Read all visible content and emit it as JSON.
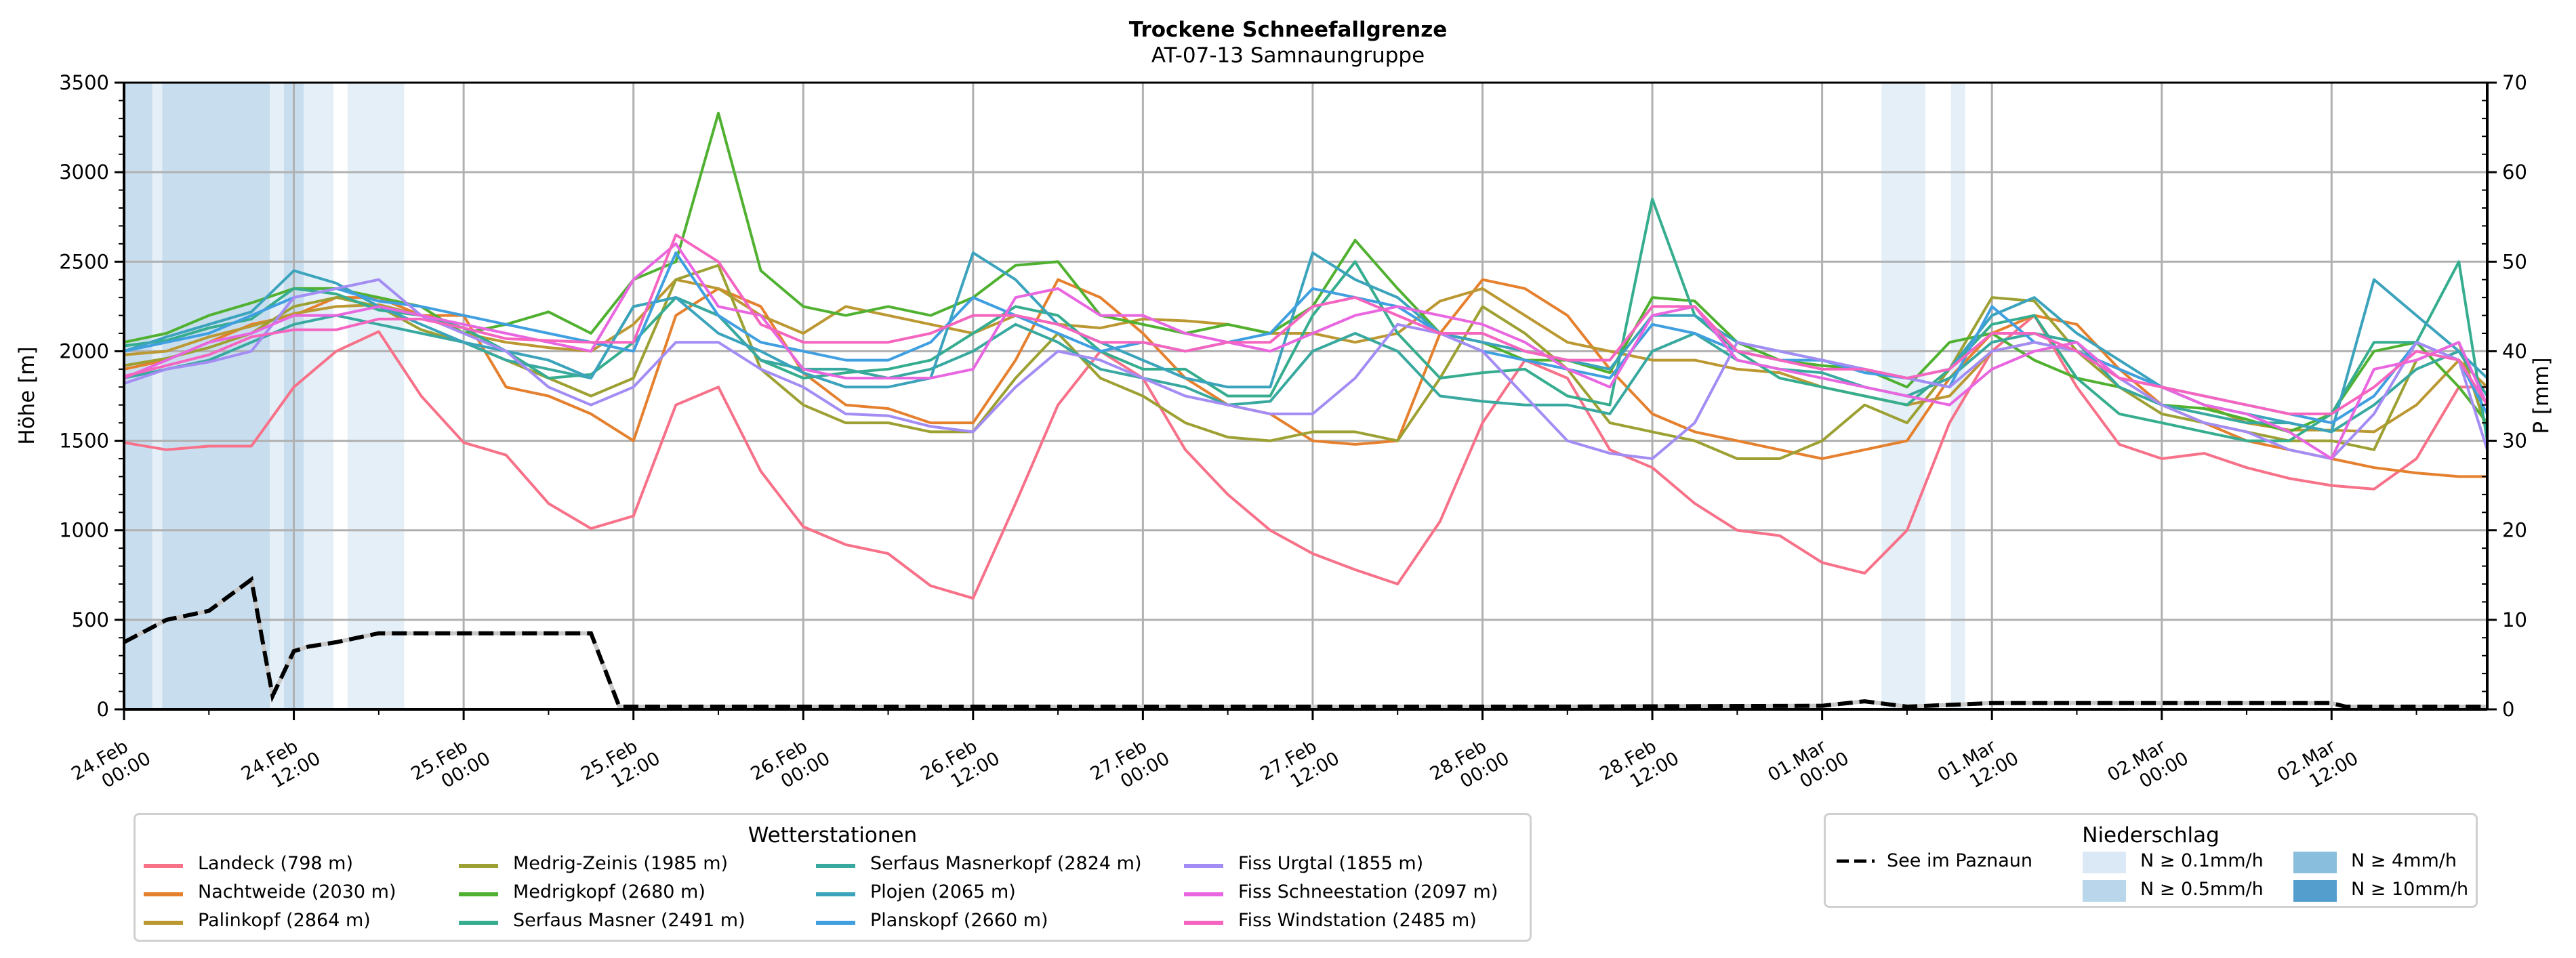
{
  "chart_data": {
    "type": "line",
    "title": "Trockene Schneefallgrenze",
    "subtitle": "AT-07-13 Samnaungruppe",
    "ylabel": "Höhe [m]",
    "y2label": "P [mm]",
    "ylim": [
      0,
      3500
    ],
    "y2lim": [
      0,
      70
    ],
    "yticks": [
      "0",
      "500",
      "1000",
      "1500",
      "2000",
      "2500",
      "3000",
      "3500"
    ],
    "y2ticks": [
      "0",
      "10",
      "20",
      "30",
      "40",
      "50",
      "60",
      "70"
    ],
    "x_unit": "hours since 24.Feb 00:00",
    "xlim": [
      0,
      167
    ],
    "xticks": [
      {
        "h": 0,
        "line1": "24.Feb",
        "line2": "00:00"
      },
      {
        "h": 12,
        "line1": "24.Feb",
        "line2": "12:00"
      },
      {
        "h": 24,
        "line1": "25.Feb",
        "line2": "00:00"
      },
      {
        "h": 36,
        "line1": "25.Feb",
        "line2": "12:00"
      },
      {
        "h": 48,
        "line1": "26.Feb",
        "line2": "00:00"
      },
      {
        "h": 60,
        "line1": "26.Feb",
        "line2": "12:00"
      },
      {
        "h": 72,
        "line1": "27.Feb",
        "line2": "00:00"
      },
      {
        "h": 84,
        "line1": "27.Feb",
        "line2": "12:00"
      },
      {
        "h": 96,
        "line1": "28.Feb",
        "line2": "00:00"
      },
      {
        "h": 108,
        "line1": "28.Feb",
        "line2": "12:00"
      },
      {
        "h": 120,
        "line1": "01.Mar",
        "line2": "00:00"
      },
      {
        "h": 132,
        "line1": "01.Mar",
        "line2": "12:00"
      },
      {
        "h": 144,
        "line1": "02.Mar",
        "line2": "00:00"
      },
      {
        "h": 156,
        "line1": "02.Mar",
        "line2": "12:00"
      }
    ],
    "grid": true,
    "x": [
      0,
      3,
      6,
      9,
      12,
      15,
      18,
      21,
      24,
      27,
      30,
      33,
      36,
      39,
      42,
      45,
      48,
      51,
      54,
      57,
      60,
      63,
      66,
      69,
      72,
      75,
      78,
      81,
      84,
      87,
      90,
      93,
      96,
      99,
      102,
      105,
      108,
      111,
      114,
      117,
      120,
      123,
      126,
      129,
      132,
      135,
      138,
      141,
      144,
      147,
      150,
      153,
      156,
      159,
      162,
      165,
      167
    ],
    "series": [
      {
        "name": "Landeck (798 m)",
        "color": "#f77189",
        "values": [
          1490,
          1450,
          1470,
          1470,
          1800,
          2000,
          2110,
          1750,
          1490,
          1420,
          1150,
          1010,
          1080,
          1700,
          1800,
          1330,
          1020,
          920,
          870,
          690,
          620,
          1150,
          1700,
          2000,
          1850,
          1450,
          1200,
          1000,
          870,
          780,
          700,
          1050,
          1600,
          1950,
          1850,
          1450,
          1350,
          1150,
          1000,
          970,
          820,
          760,
          1000,
          1600,
          2000,
          2200,
          1800,
          1480,
          1400,
          1430,
          1350,
          1290,
          1250,
          1230,
          1400,
          1800,
          1800
        ]
      },
      {
        "name": "Nachtweide (2030 m)",
        "color": "#e5802e",
        "values": [
          1900,
          1950,
          2050,
          2150,
          2200,
          2300,
          2300,
          2200,
          2200,
          1800,
          1750,
          1650,
          1500,
          2200,
          2350,
          2250,
          1880,
          1700,
          1680,
          1600,
          1600,
          1950,
          2400,
          2300,
          2100,
          1850,
          1700,
          1650,
          1500,
          1480,
          1500,
          2100,
          2400,
          2350,
          2200,
          1900,
          1650,
          1550,
          1500,
          1450,
          1400,
          1450,
          1500,
          1850,
          2100,
          2200,
          2150,
          1900,
          1700,
          1600,
          1500,
          1450,
          1400,
          1350,
          1320,
          1300,
          1300
        ]
      },
      {
        "name": "Palinkopf (2864 m)",
        "color": "#bb9832",
        "values": [
          1980,
          2000,
          2080,
          2140,
          2210,
          2250,
          2260,
          2200,
          2100,
          2050,
          2020,
          2000,
          2150,
          2400,
          2350,
          2200,
          2100,
          2250,
          2200,
          2150,
          2100,
          2200,
          2150,
          2130,
          2180,
          2170,
          2150,
          2100,
          2100,
          2050,
          2100,
          2280,
          2350,
          2200,
          2050,
          2000,
          1950,
          1950,
          1900,
          1880,
          1800,
          1750,
          1700,
          1750,
          2000,
          2050,
          2000,
          1900,
          1800,
          1700,
          1600,
          1560,
          1560,
          1550,
          1700,
          1950,
          1800
        ]
      },
      {
        "name": "Medrig-Zeinis (1985 m)",
        "color": "#9da032",
        "values": [
          1920,
          1960,
          2020,
          2100,
          2250,
          2300,
          2250,
          2120,
          2050,
          1950,
          1850,
          1750,
          1850,
          2400,
          2480,
          1900,
          1700,
          1600,
          1600,
          1550,
          1550,
          1850,
          2100,
          1850,
          1750,
          1600,
          1520,
          1500,
          1550,
          1550,
          1500,
          1850,
          2250,
          2100,
          1900,
          1600,
          1550,
          1500,
          1400,
          1400,
          1500,
          1700,
          1600,
          1900,
          2300,
          2280,
          2000,
          1800,
          1650,
          1600,
          1550,
          1500,
          1500,
          1450,
          1950,
          2050,
          1550
        ]
      },
      {
        "name": "Medrigkopf (2680 m)",
        "color": "#50b131",
        "values": [
          2050,
          2100,
          2200,
          2270,
          2350,
          2350,
          2300,
          2250,
          2100,
          2150,
          2220,
          2100,
          2400,
          2500,
          3330,
          2450,
          2250,
          2200,
          2250,
          2200,
          2300,
          2480,
          2500,
          2200,
          2150,
          2100,
          2150,
          2100,
          2250,
          2620,
          2350,
          2100,
          2050,
          1950,
          1950,
          1880,
          2300,
          2280,
          2050,
          1950,
          1920,
          1900,
          1800,
          2050,
          2100,
          1950,
          1850,
          1800,
          1700,
          1680,
          1620,
          1550,
          1650,
          2000,
          2050,
          1800,
          1600
        ]
      },
      {
        "name": "Serfaus Masner (2491 m)",
        "color": "#35ad8e",
        "values": [
          2030,
          2060,
          2130,
          2180,
          2350,
          2320,
          2230,
          2200,
          2130,
          2000,
          1850,
          1870,
          2050,
          2300,
          2200,
          1950,
          1850,
          1880,
          1900,
          1950,
          2100,
          2250,
          2200,
          2000,
          1900,
          1900,
          1750,
          1750,
          2200,
          2500,
          2100,
          1850,
          1880,
          1900,
          1750,
          1700,
          2850,
          2200,
          2000,
          1850,
          1800,
          1750,
          1700,
          1900,
          2150,
          2200,
          1850,
          1650,
          1600,
          1550,
          1500,
          1500,
          1650,
          2050,
          2050,
          2500,
          1500
        ]
      },
      {
        "name": "Serfaus Masnerkopf (2824 m)",
        "color": "#39a9a0",
        "values": [
          1850,
          1900,
          1950,
          2050,
          2150,
          2200,
          2150,
          2100,
          2050,
          1950,
          1900,
          1850,
          2250,
          2300,
          2200,
          1950,
          1900,
          1900,
          1850,
          1900,
          2000,
          2150,
          2050,
          1900,
          1850,
          1800,
          1700,
          1720,
          2000,
          2100,
          2000,
          1750,
          1720,
          1700,
          1700,
          1650,
          2000,
          2100,
          1950,
          1900,
          1880,
          1800,
          1750,
          1850,
          2050,
          2100,
          2050,
          1800,
          1700,
          1650,
          1600,
          1600,
          1550,
          1700,
          1900,
          2000,
          1750
        ]
      },
      {
        "name": "Plojen (2065 m)",
        "color": "#3ba3bc",
        "values": [
          2000,
          2080,
          2150,
          2220,
          2450,
          2380,
          2250,
          2150,
          2050,
          2000,
          1950,
          1850,
          2250,
          2300,
          2100,
          2000,
          1880,
          1800,
          1800,
          1850,
          2550,
          2400,
          2150,
          2050,
          1950,
          1850,
          1800,
          1800,
          2550,
          2400,
          2300,
          2100,
          2050,
          2000,
          1950,
          1900,
          2200,
          2200,
          2050,
          2000,
          1950,
          1900,
          1850,
          1900,
          2200,
          2300,
          2100,
          1950,
          1800,
          1700,
          1650,
          1600,
          1550,
          2400,
          2200,
          2000,
          1850
        ]
      },
      {
        "name": "Planskopf (2660 m)",
        "color": "#409fe0",
        "values": [
          2000,
          2050,
          2100,
          2200,
          2300,
          2350,
          2280,
          2250,
          2200,
          2150,
          2100,
          2050,
          2000,
          2550,
          2200,
          2050,
          2000,
          1950,
          1950,
          2050,
          2300,
          2200,
          2100,
          2000,
          2050,
          2000,
          2050,
          2100,
          2350,
          2300,
          2250,
          2100,
          2000,
          1950,
          1900,
          1850,
          2150,
          2100,
          2000,
          1950,
          1950,
          1880,
          1850,
          1800,
          2250,
          2050,
          2000,
          1900,
          1800,
          1750,
          1700,
          1650,
          1600,
          1750,
          2050,
          1950,
          1650
        ]
      },
      {
        "name": "Fiss Urgtal  (1855 m)",
        "color": "#a38cf4",
        "values": [
          1820,
          1900,
          1940,
          2000,
          2300,
          2350,
          2400,
          2200,
          2100,
          2000,
          1800,
          1700,
          1800,
          2050,
          2050,
          1900,
          1800,
          1650,
          1640,
          1580,
          1550,
          1800,
          2000,
          1950,
          1850,
          1750,
          1700,
          1650,
          1650,
          1850,
          2150,
          2100,
          2000,
          1750,
          1500,
          1430,
          1400,
          1600,
          2050,
          2000,
          1950,
          1900,
          1850,
          1800,
          2000,
          2050,
          2000,
          1850,
          1700,
          1600,
          1550,
          1450,
          1400,
          1650,
          2050,
          1950,
          1450
        ]
      },
      {
        "name": "Fiss Schneestation (2097 m)",
        "color": "#e866e0",
        "values": [
          1850,
          1950,
          2050,
          2100,
          2200,
          2200,
          2250,
          2200,
          2150,
          2100,
          2050,
          2000,
          2400,
          2600,
          2250,
          2200,
          1900,
          1850,
          1850,
          1850,
          1900,
          2300,
          2350,
          2200,
          2200,
          2100,
          2050,
          2000,
          2100,
          2200,
          2250,
          2200,
          2150,
          2050,
          1900,
          1800,
          2200,
          2250,
          1950,
          1900,
          1850,
          1800,
          1750,
          1700,
          1900,
          2000,
          2050,
          1850,
          1800,
          1700,
          1650,
          1550,
          1400,
          1900,
          1950,
          2050,
          1700
        ]
      },
      {
        "name": "Fiss Windstation (2485 m)",
        "color": "#f565c0",
        "values": [
          1860,
          1920,
          1980,
          2080,
          2120,
          2120,
          2180,
          2180,
          2130,
          2070,
          2060,
          2050,
          2050,
          2650,
          2500,
          2150,
          2050,
          2050,
          2050,
          2100,
          2200,
          2200,
          2150,
          2050,
          2050,
          2000,
          2050,
          2050,
          2250,
          2300,
          2200,
          2100,
          2100,
          2000,
          1950,
          1950,
          2250,
          2250,
          2000,
          1950,
          1900,
          1900,
          1850,
          1900,
          2100,
          2100,
          2000,
          1850,
          1800,
          1750,
          1700,
          1650,
          1650,
          1800,
          2000,
          1950,
          1700
        ]
      }
    ],
    "precipitation_line": {
      "name": "See im Paznaun",
      "axis": "P [mm]",
      "x": [
        0,
        3,
        6,
        9,
        10.5,
        12,
        13,
        15,
        18,
        21,
        24,
        27,
        30,
        33,
        35,
        40,
        60,
        100,
        120,
        123,
        126,
        129,
        132,
        144,
        156,
        157,
        167
      ],
      "values": [
        7.5,
        10,
        11,
        14.5,
        1.5,
        6.5,
        7,
        7.5,
        8.5,
        8.5,
        8.5,
        8.5,
        8.5,
        8.5,
        0.3,
        0.3,
        0.3,
        0.3,
        0.4,
        0.9,
        0.3,
        0.5,
        0.7,
        0.7,
        0.7,
        0.3,
        0.3
      ]
    },
    "precipitation_bands": [
      {
        "start": 0,
        "end": 2,
        "level": "N ≥ 0.5mm/h"
      },
      {
        "start": 2,
        "end": 2.7,
        "level": "N ≥ 0.1mm/h"
      },
      {
        "start": 2.7,
        "end": 10.3,
        "level": "N ≥ 0.5mm/h"
      },
      {
        "start": 10.3,
        "end": 11.3,
        "level": "N ≥ 0.1mm/h"
      },
      {
        "start": 11.3,
        "end": 12.7,
        "level": "N ≥ 0.5mm/h"
      },
      {
        "start": 12.7,
        "end": 14.8,
        "level": "N ≥ 0.1mm/h"
      },
      {
        "start": 15.8,
        "end": 19.8,
        "level": "N ≥ 0.1mm/h"
      },
      {
        "start": 124.2,
        "end": 127.3,
        "level": "N ≥ 0.1mm/h"
      },
      {
        "start": 129.1,
        "end": 130.1,
        "level": "N ≥ 0.1mm/h"
      }
    ],
    "legend": {
      "stations_title": "Wetterstationen",
      "stations_placement": "bottom-left",
      "precip_title": "Niederschlag",
      "precip_placement": "bottom-right",
      "precip_line_label": "See im Paznaun",
      "precip_levels": [
        {
          "label": "N ≥ 0.1mm/h",
          "color": "#dbe9f6"
        },
        {
          "label": "N ≥ 0.5mm/h",
          "color": "#bad6eb"
        },
        {
          "label": "N ≥ 4mm/h",
          "color": "#89bedc"
        },
        {
          "label": "N ≥ 10mm/h",
          "color": "#539ecd"
        }
      ]
    }
  }
}
